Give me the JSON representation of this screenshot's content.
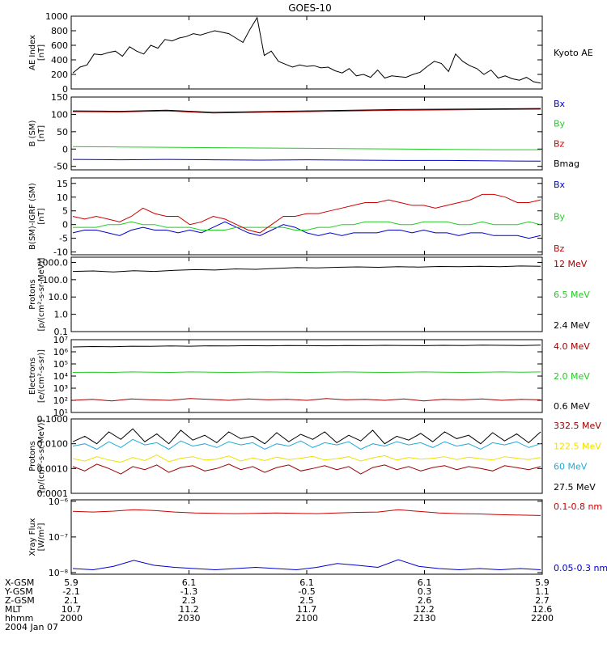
{
  "title": "GOES-10",
  "colors": {
    "black": "#000000",
    "red": "#cc0000",
    "darkred": "#a00000",
    "green": "#22cc22",
    "blue": "#0000cc",
    "cyan": "#22aadd",
    "yellow": "#f0e000"
  },
  "chart_data": [
    {
      "type": "line",
      "ylabel": [
        "AE Index",
        "[nT]"
      ],
      "ylim": [
        0,
        1000
      ],
      "yticks": [
        "0",
        "200",
        "400",
        "600",
        "800",
        "1000"
      ],
      "ytickvals": [
        0,
        200,
        400,
        600,
        800,
        1000
      ],
      "series": [
        {
          "name": "Kyoto AE",
          "color": "black",
          "values": [
            220,
            300,
            330,
            480,
            470,
            500,
            520,
            450,
            580,
            520,
            480,
            600,
            560,
            680,
            660,
            700,
            720,
            760,
            740,
            770,
            800,
            780,
            760,
            700,
            640,
            820,
            980,
            460,
            520,
            380,
            340,
            300,
            330,
            310,
            320,
            290,
            300,
            250,
            220,
            280,
            180,
            200,
            160,
            260,
            150,
            180,
            170,
            160,
            200,
            230,
            310,
            380,
            350,
            240,
            480,
            380,
            320,
            280,
            200,
            260,
            150,
            180,
            140,
            120,
            160,
            100,
            80
          ]
        }
      ]
    },
    {
      "type": "line",
      "ylabel": [
        "B (SM)",
        "[nT]"
      ],
      "ylim": [
        -60,
        150
      ],
      "yticks": [
        "-50",
        "0",
        "50",
        "100",
        "150"
      ],
      "ytickvals": [
        -50,
        0,
        50,
        100,
        150
      ],
      "series": [
        {
          "name": "Bx",
          "color": "blue",
          "values": [
            -30,
            -31,
            -30,
            -31,
            -32,
            -31,
            -32,
            -33,
            -33,
            -34,
            -35
          ]
        },
        {
          "name": "By",
          "color": "green",
          "values": [
            7,
            6,
            5,
            4,
            3,
            2,
            1,
            0,
            -1,
            -2,
            -2
          ]
        },
        {
          "name": "Bz",
          "color": "red",
          "values": [
            108,
            107,
            110,
            104,
            106,
            108,
            110,
            112,
            113,
            114,
            115
          ]
        },
        {
          "name": "Bmag",
          "color": "black",
          "values": [
            110,
            109,
            112,
            106,
            108,
            110,
            112,
            114,
            115,
            116,
            117
          ]
        }
      ]
    },
    {
      "type": "line",
      "ylabel": [
        "B(SM)-IGRF (SM)",
        "[nT]"
      ],
      "ylim": [
        -11,
        17
      ],
      "yticks": [
        "-10",
        "-5",
        "0",
        "5",
        "10",
        "15"
      ],
      "ytickvals": [
        -10,
        -5,
        0,
        5,
        10,
        15
      ],
      "series": [
        {
          "name": "Bx",
          "color": "blue",
          "values": [
            -3,
            -2,
            -2,
            -3,
            -4,
            -2,
            -1,
            -2,
            -2,
            -3,
            -2,
            -3,
            -1,
            1,
            -1,
            -3,
            -4,
            -2,
            0,
            -1,
            -3,
            -4,
            -3,
            -4,
            -3,
            -3,
            -3,
            -2,
            -2,
            -3,
            -2,
            -3,
            -3,
            -4,
            -3,
            -3,
            -4,
            -4,
            -4,
            -5,
            -4
          ]
        },
        {
          "name": "By",
          "color": "green",
          "values": [
            -1,
            -1,
            -1,
            0,
            0,
            1,
            0,
            0,
            -1,
            -1,
            -1,
            -2,
            -2,
            -2,
            -1,
            -1,
            -1,
            -1,
            -1,
            -2,
            -2,
            -1,
            -1,
            0,
            0,
            1,
            1,
            1,
            0,
            0,
            1,
            1,
            1,
            0,
            0,
            1,
            0,
            0,
            0,
            1,
            0
          ]
        },
        {
          "name": "Bz",
          "color": "red",
          "values": [
            3,
            2,
            3,
            2,
            1,
            3,
            6,
            4,
            3,
            3,
            0,
            1,
            3,
            2,
            0,
            -2,
            -3,
            0,
            3,
            3,
            4,
            4,
            5,
            6,
            7,
            8,
            8,
            9,
            8,
            7,
            7,
            6,
            7,
            8,
            9,
            11,
            11,
            10,
            8,
            8,
            9
          ]
        }
      ]
    },
    {
      "type": "line",
      "log": true,
      "ylabel": [
        "Protons",
        "[p/(cm²-s-sr-MeV)]"
      ],
      "ylim": [
        0.1,
        2000
      ],
      "yticks": [
        "0.1",
        "1.0",
        "10.0",
        "100.0",
        "1000.0"
      ],
      "ytickvals": [
        0.1,
        1,
        10,
        100,
        1000
      ],
      "series": [
        {
          "name": "12 MeV",
          "color": "darkred",
          "values": []
        },
        {
          "name": "6.5 MeV",
          "color": "green",
          "values": []
        },
        {
          "name": "2.4 MeV",
          "color": "black",
          "values": [
            300,
            320,
            280,
            330,
            300,
            350,
            380,
            360,
            420,
            400,
            450,
            500,
            480,
            520,
            550,
            520,
            560,
            540,
            580,
            560,
            600,
            570,
            620,
            600
          ]
        }
      ]
    },
    {
      "type": "line",
      "log": true,
      "ylabel": [
        "Electrons",
        "[e/(cm²-s-sr)]"
      ],
      "ylim": [
        10,
        10000000
      ],
      "yticks": [
        "10¹",
        "10²",
        "10³",
        "10⁴",
        "10⁵",
        "10⁶",
        "10⁷"
      ],
      "ytickvals": [
        10,
        100,
        1000,
        10000,
        100000,
        1000000,
        10000000
      ],
      "series": [
        {
          "name": "4.0 MeV",
          "color": "darkred",
          "values": [
            100,
            120,
            90,
            130,
            110,
            100,
            140,
            120,
            100,
            130,
            110,
            120,
            100,
            140,
            110,
            120,
            100,
            130,
            90,
            120,
            110,
            130,
            100,
            120,
            110
          ]
        },
        {
          "name": "2.0 MeV",
          "color": "green",
          "values": [
            20000,
            21000,
            20000,
            22000,
            21000,
            20000,
            22000,
            21000,
            20000,
            21000,
            22000,
            21000,
            20000,
            21000,
            22000,
            21000,
            20000,
            21000,
            22000,
            21000,
            20000,
            21000,
            22000,
            21000,
            22000
          ]
        },
        {
          "name": "0.6 MeV",
          "color": "black",
          "values": [
            2500000,
            2700000,
            2600000,
            2900000,
            2800000,
            3000000,
            2900000,
            3100000,
            3000000,
            3200000,
            3100000,
            3300000,
            3200000,
            3100000,
            3300000,
            3200000,
            3400000,
            3300000,
            3200000,
            3400000,
            3300000,
            3500000,
            3400000,
            3300000,
            3500000
          ]
        }
      ]
    },
    {
      "type": "line",
      "log": true,
      "ylabel": [
        "Protons",
        "[p/(cm²-s-sr-MeV)]"
      ],
      "ylim": [
        0.0001,
        0.1
      ],
      "yticks": [
        "0.0001",
        "0.0010",
        "0.0100",
        "0.1000"
      ],
      "ytickvals": [
        0.0001,
        0.001,
        0.01,
        0.1
      ],
      "series": [
        {
          "name": "332.5 MeV",
          "color": "darkred",
          "values": [
            0.0012,
            0.0008,
            0.0015,
            0.001,
            0.0006,
            0.0012,
            0.0009,
            0.0014,
            0.0007,
            0.0011,
            0.0013,
            0.0008,
            0.001,
            0.0015,
            0.0009,
            0.0012,
            0.0007,
            0.0011,
            0.0014,
            0.0008,
            0.001,
            0.0013,
            0.0009,
            0.0012,
            0.0006,
            0.0011,
            0.0014,
            0.0009,
            0.0012,
            0.0008,
            0.0011,
            0.0013,
            0.0009,
            0.0012,
            0.001,
            0.0008,
            0.0013,
            0.0011,
            0.0009,
            0.0012
          ]
        },
        {
          "name": "122.5 MeV",
          "color": "yellow",
          "values": [
            0.0025,
            0.002,
            0.003,
            0.0022,
            0.0018,
            0.0028,
            0.0021,
            0.0035,
            0.0019,
            0.0026,
            0.003,
            0.0022,
            0.0024,
            0.0032,
            0.002,
            0.0027,
            0.0021,
            0.0029,
            0.0023,
            0.0026,
            0.0031,
            0.0022,
            0.0025,
            0.003,
            0.002,
            0.0027,
            0.0033,
            0.0022,
            0.0028,
            0.0024,
            0.0026,
            0.003,
            0.0023,
            0.0029,
            0.0025,
            0.0022,
            0.003,
            0.0026,
            0.0023,
            0.0028
          ]
        },
        {
          "name": "60 MeV",
          "color": "cyan",
          "values": [
            0.008,
            0.01,
            0.006,
            0.012,
            0.007,
            0.015,
            0.009,
            0.011,
            0.006,
            0.013,
            0.008,
            0.01,
            0.007,
            0.012,
            0.009,
            0.011,
            0.006,
            0.01,
            0.008,
            0.013,
            0.007,
            0.011,
            0.009,
            0.012,
            0.006,
            0.01,
            0.008,
            0.012,
            0.009,
            0.011,
            0.007,
            0.012,
            0.008,
            0.01,
            0.006,
            0.011,
            0.009,
            0.012,
            0.007,
            0.01
          ]
        },
        {
          "name": "27.5 MeV",
          "color": "black",
          "values": [
            0.012,
            0.02,
            0.01,
            0.03,
            0.015,
            0.04,
            0.012,
            0.025,
            0.01,
            0.035,
            0.014,
            0.022,
            0.011,
            0.03,
            0.016,
            0.02,
            0.01,
            0.028,
            0.012,
            0.024,
            0.015,
            0.03,
            0.011,
            0.022,
            0.013,
            0.035,
            0.01,
            0.02,
            0.014,
            0.026,
            0.012,
            0.03,
            0.016,
            0.022,
            0.01,
            0.028,
            0.013,
            0.025,
            0.011,
            0.03
          ]
        }
      ]
    },
    {
      "type": "line",
      "log": true,
      "ylabel": [
        "Xray Flux",
        "[W/m²]"
      ],
      "ylim": [
        9e-09,
        1.1e-06
      ],
      "yticks": [
        "10⁻⁸",
        "10⁻⁷",
        "10⁻⁶"
      ],
      "ytickvals": [
        1e-08,
        1e-07,
        1e-06
      ],
      "series": [
        {
          "name": "0.1-0.8 nm",
          "color": "red",
          "values": [
            5.2e-07,
            5e-07,
            5.3e-07,
            5.8e-07,
            5.5e-07,
            5e-07,
            4.7e-07,
            4.6e-07,
            4.5e-07,
            4.6e-07,
            4.7e-07,
            4.6e-07,
            4.5e-07,
            4.7e-07,
            4.9e-07,
            5e-07,
            5.8e-07,
            5.2e-07,
            4.7e-07,
            4.5e-07,
            4.4e-07,
            4.2e-07,
            4.1e-07,
            4e-07
          ]
        },
        {
          "name": "0.05-0.3 nm",
          "color": "blue",
          "values": [
            1.3e-08,
            1.2e-08,
            1.5e-08,
            2.2e-08,
            1.6e-08,
            1.4e-08,
            1.3e-08,
            1.2e-08,
            1.3e-08,
            1.4e-08,
            1.3e-08,
            1.2e-08,
            1.4e-08,
            1.8e-08,
            1.6e-08,
            1.4e-08,
            2.3e-08,
            1.5e-08,
            1.3e-08,
            1.2e-08,
            1.3e-08,
            1.2e-08,
            1.3e-08,
            1.2e-08
          ]
        }
      ]
    }
  ],
  "footer": {
    "row_labels": [
      "X-GSM",
      "Y-GSM",
      "Z-GSM",
      "MLT",
      "hhmm",
      "2004 Jan 07"
    ],
    "columns": [
      [
        "5.9",
        "-2.1",
        "2.1",
        "10.7",
        "2000"
      ],
      [
        "6.1",
        "-1.3",
        "2.3",
        "11.2",
        "2030"
      ],
      [
        "6.1",
        "-0.5",
        "2.5",
        "11.7",
        "2100"
      ],
      [
        "6.1",
        "0.3",
        "2.6",
        "12.2",
        "2130"
      ],
      [
        "5.9",
        "1.1",
        "2.7",
        "12.6",
        "2200"
      ]
    ]
  }
}
